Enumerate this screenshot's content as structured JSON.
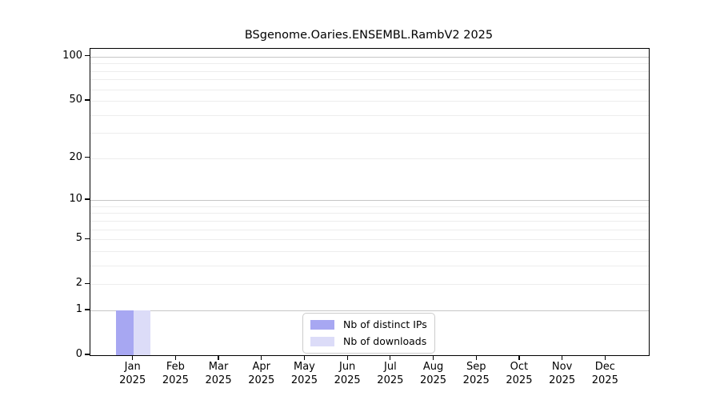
{
  "title": "BSgenome.Oaries.ENSEMBL.RambV2 2025",
  "chart_data": {
    "type": "bar",
    "title": "BSgenome.Oaries.ENSEMBL.RambV2 2025",
    "x_categories": [
      {
        "month": "Jan",
        "year": "2025"
      },
      {
        "month": "Feb",
        "year": "2025"
      },
      {
        "month": "Mar",
        "year": "2025"
      },
      {
        "month": "Apr",
        "year": "2025"
      },
      {
        "month": "May",
        "year": "2025"
      },
      {
        "month": "Jun",
        "year": "2025"
      },
      {
        "month": "Jul",
        "year": "2025"
      },
      {
        "month": "Aug",
        "year": "2025"
      },
      {
        "month": "Sep",
        "year": "2025"
      },
      {
        "month": "Oct",
        "year": "2025"
      },
      {
        "month": "Nov",
        "year": "2025"
      },
      {
        "month": "Dec",
        "year": "2025"
      }
    ],
    "series": [
      {
        "name": "Nb of distinct IPs",
        "color": "#a7a7f2",
        "values": [
          1,
          0,
          0,
          0,
          0,
          0,
          0,
          0,
          0,
          0,
          0,
          0
        ]
      },
      {
        "name": "Nb of downloads",
        "color": "#dcdcf8",
        "values": [
          1,
          0,
          0,
          0,
          0,
          0,
          0,
          0,
          0,
          0,
          0,
          0
        ]
      }
    ],
    "yscale": "log1p",
    "ylim": [
      0,
      113
    ],
    "ytick_values": [
      0,
      1,
      2,
      5,
      10,
      20,
      50,
      100
    ],
    "ytick_labels": [
      "0",
      "1",
      "2",
      "5",
      "10",
      "20",
      "50",
      "100"
    ],
    "gridlines": {
      "major": [
        1,
        10,
        100
      ],
      "minor": [
        2,
        3,
        4,
        5,
        6,
        7,
        8,
        9,
        20,
        30,
        40,
        50,
        60,
        70,
        80,
        90
      ]
    },
    "legend_position": "lower center inside",
    "xlabel": "",
    "ylabel": ""
  },
  "colors": {
    "axis": "#000000",
    "grid_major": "#c6c6c6",
    "grid_minor": "#ededed",
    "background": "#ffffff",
    "legend_border": "#cccccc",
    "text": "#000000"
  }
}
